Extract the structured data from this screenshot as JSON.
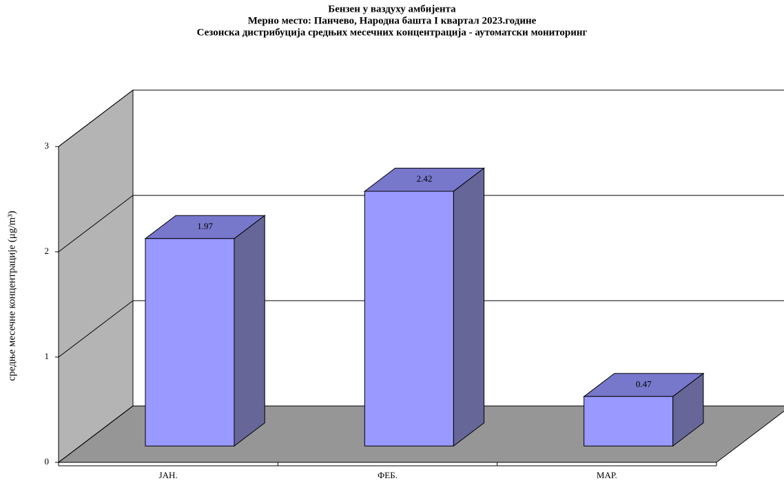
{
  "chart_data": {
    "type": "bar3d",
    "title": "Бензен у ваздуху амбијента",
    "subtitle": [
      "Мерно место: Панчево, Народна башта I квартал 2023.године",
      "Сезонска дистрибуција средњих месечних концентрација - аутоматски мониторинг"
    ],
    "y_label": "средње месечне концентрације (μg/m³)",
    "categories": [
      "ЈАН.",
      "ФЕБ.",
      "МАР."
    ],
    "values": [
      1.97,
      2.42,
      0.47
    ],
    "color": "#9999ff",
    "ylim": [
      0,
      3
    ],
    "yticks": [
      0,
      1,
      2,
      3
    ],
    "grid": true
  }
}
